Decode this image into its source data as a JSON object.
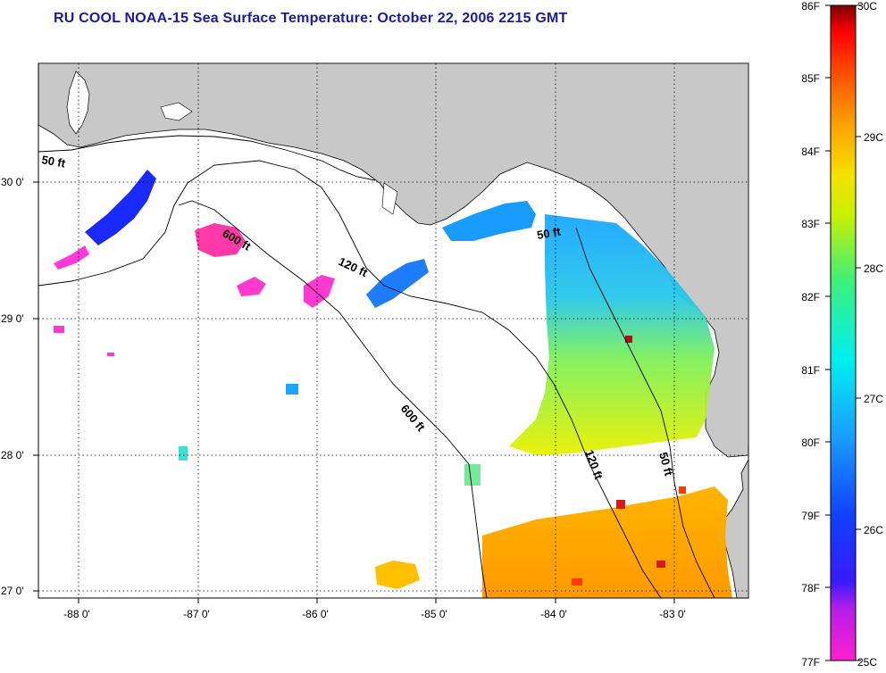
{
  "title": "RU COOL  NOAA-15  Sea Surface Temperature:  October 22, 2006 2215 GMT",
  "map": {
    "lon_ticks": [
      "-88 0'",
      "-87 0'",
      "-86 0'",
      "-85 0'",
      "-84 0'",
      "-83 0'"
    ],
    "lat_ticks": [
      "30 0'",
      "29 0'",
      "28 0'",
      "27 0'"
    ],
    "lon_range": [
      -88.3,
      -82.5
    ],
    "lat_range": [
      26.95,
      30.85
    ],
    "contour_labels": [
      {
        "text": "50 ft",
        "depth": "50 ft"
      },
      {
        "text": "600 ft",
        "depth": "600 ft"
      },
      {
        "text": "120 ft",
        "depth": "120 ft"
      },
      {
        "text": "50 ft",
        "depth": "50 ft"
      },
      {
        "text": "600 ft",
        "depth": "600 ft"
      },
      {
        "text": "120 ft",
        "depth": "120 ft"
      },
      {
        "text": "50 ft",
        "depth": "50 ft"
      }
    ],
    "land_color": "#c8c8c8",
    "no_data_color": "#ffffff"
  },
  "colorbar": {
    "fahrenheit_labels": [
      "86F",
      "85F",
      "84F",
      "83F",
      "82F",
      "81F",
      "80F",
      "79F",
      "78F",
      "77F"
    ],
    "celsius_labels": [
      "30C",
      "29C",
      "28C",
      "27C",
      "26C",
      "25C"
    ],
    "range_f": [
      77,
      86
    ],
    "range_c": [
      25,
      30
    ],
    "colors": [
      "#ff1fd0",
      "#7a1fff",
      "#0a1aff",
      "#1a8cff",
      "#00f5f5",
      "#55f066",
      "#f2f200",
      "#ffaa00",
      "#ff5a00",
      "#ff0000",
      "#8a0000"
    ]
  }
}
